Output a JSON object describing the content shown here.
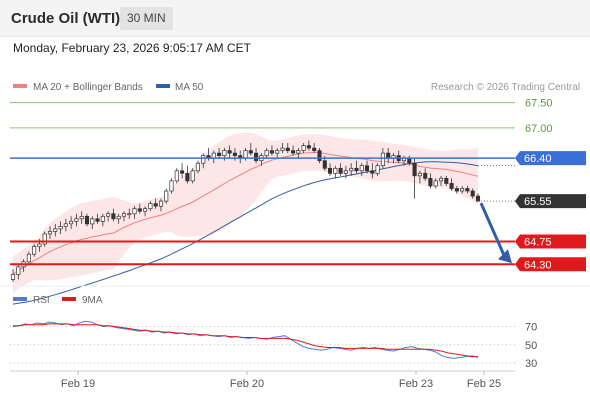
{
  "header": {
    "instrument": "Crude Oil (WTI)",
    "timeframe": "30 MIN"
  },
  "datetime": "Monday, February 23, 2026 9:05:17 AM CET",
  "legend": {
    "ma20_label": "MA 20 + Bollinger Bands",
    "ma50_label": "MA 50",
    "credit": "Research © 2026 Trading Central"
  },
  "rsi_legend": {
    "rsi_label": "RSI",
    "ma9_label": "9MA"
  },
  "colors": {
    "candle": "#333333",
    "ma20": "#f08080",
    "ma50": "#2f5fa8",
    "bollinger_fill": "#fde2e2",
    "resistance": "#8cc26a",
    "pivot": "#3a6fd8",
    "support": "#e0191d",
    "price_tag": "#333333",
    "rsi": "#5577dd",
    "rsi_ma": "#e0191d",
    "forecast_arrow": "#2f5fa8"
  },
  "chart_data": [
    {
      "type": "candlestick",
      "x_ticks": [
        "Feb 19",
        "Feb 20",
        "Feb 23",
        "Feb 25"
      ],
      "ylim": [
        63.85,
        67.65
      ],
      "levels": [
        {
          "value": 67.5,
          "label": "67.50",
          "kind": "resistance"
        },
        {
          "value": 67.0,
          "label": "67.00",
          "kind": "resistance"
        },
        {
          "value": 66.4,
          "label": "66.40",
          "kind": "pivot"
        },
        {
          "value": 64.75,
          "label": "64.75",
          "kind": "support"
        },
        {
          "value": 64.3,
          "label": "64.30",
          "kind": "support"
        }
      ],
      "last_price": {
        "value": 65.55,
        "label": "65.55"
      },
      "forecast": {
        "from": 65.55,
        "to": 64.3
      },
      "candles_ohlc": [
        [
          64.0,
          64.2,
          63.95,
          64.1
        ],
        [
          64.1,
          64.3,
          64.0,
          64.25
        ],
        [
          64.25,
          64.4,
          64.15,
          64.35
        ],
        [
          64.35,
          64.55,
          64.3,
          64.5
        ],
        [
          64.5,
          64.7,
          64.45,
          64.65
        ],
        [
          64.65,
          64.8,
          64.55,
          64.7
        ],
        [
          64.7,
          64.95,
          64.65,
          64.9
        ],
        [
          64.9,
          65.05,
          64.8,
          64.95
        ],
        [
          64.95,
          65.1,
          64.85,
          65.0
        ],
        [
          65.0,
          65.15,
          64.9,
          65.05
        ],
        [
          65.05,
          65.2,
          64.95,
          65.1
        ],
        [
          65.1,
          65.25,
          65.0,
          65.15
        ],
        [
          65.15,
          65.3,
          65.05,
          65.2
        ],
        [
          65.2,
          65.35,
          65.1,
          65.25
        ],
        [
          65.25,
          65.3,
          65.05,
          65.1
        ],
        [
          65.1,
          65.25,
          65.0,
          65.2
        ],
        [
          65.2,
          65.3,
          65.1,
          65.15
        ],
        [
          65.15,
          65.3,
          65.05,
          65.25
        ],
        [
          65.25,
          65.35,
          65.15,
          65.3
        ],
        [
          65.3,
          65.4,
          65.15,
          65.2
        ],
        [
          65.2,
          65.3,
          65.1,
          65.25
        ],
        [
          65.25,
          65.35,
          65.15,
          65.3
        ],
        [
          65.3,
          65.4,
          65.2,
          65.3
        ],
        [
          65.3,
          65.45,
          65.2,
          65.4
        ],
        [
          65.4,
          65.5,
          65.3,
          65.35
        ],
        [
          65.35,
          65.45,
          65.25,
          65.4
        ],
        [
          65.4,
          65.55,
          65.35,
          65.5
        ],
        [
          65.5,
          65.6,
          65.4,
          65.45
        ],
        [
          65.45,
          65.6,
          65.35,
          65.55
        ],
        [
          65.55,
          65.8,
          65.5,
          65.75
        ],
        [
          65.75,
          66.0,
          65.7,
          65.95
        ],
        [
          65.95,
          66.2,
          65.9,
          66.15
        ],
        [
          66.15,
          66.3,
          66.0,
          66.1
        ],
        [
          66.1,
          66.25,
          65.9,
          65.95
        ],
        [
          65.95,
          66.2,
          65.9,
          66.15
        ],
        [
          66.15,
          66.35,
          66.1,
          66.3
        ],
        [
          66.3,
          66.5,
          66.2,
          66.45
        ],
        [
          66.45,
          66.6,
          66.35,
          66.4
        ],
        [
          66.4,
          66.55,
          66.3,
          66.5
        ],
        [
          66.5,
          66.6,
          66.4,
          66.45
        ],
        [
          66.45,
          66.6,
          66.35,
          66.55
        ],
        [
          66.55,
          66.65,
          66.4,
          66.5
        ],
        [
          66.5,
          66.6,
          66.35,
          66.45
        ],
        [
          66.45,
          66.55,
          66.3,
          66.4
        ],
        [
          66.4,
          66.6,
          66.35,
          66.55
        ],
        [
          66.55,
          66.7,
          66.45,
          66.5
        ],
        [
          66.5,
          66.6,
          66.3,
          66.35
        ],
        [
          66.35,
          66.5,
          66.25,
          66.45
        ],
        [
          66.45,
          66.6,
          66.4,
          66.55
        ],
        [
          66.55,
          66.65,
          66.45,
          66.5
        ],
        [
          66.5,
          66.6,
          66.4,
          66.55
        ],
        [
          66.55,
          66.7,
          66.5,
          66.6
        ],
        [
          66.6,
          66.7,
          66.5,
          66.55
        ],
        [
          66.55,
          66.65,
          66.45,
          66.5
        ],
        [
          66.5,
          66.6,
          66.4,
          66.55
        ],
        [
          66.55,
          66.7,
          66.5,
          66.65
        ],
        [
          66.65,
          66.75,
          66.55,
          66.6
        ],
        [
          66.6,
          66.7,
          66.5,
          66.55
        ],
        [
          66.55,
          66.6,
          66.3,
          66.35
        ],
        [
          66.35,
          66.45,
          66.15,
          66.2
        ],
        [
          66.2,
          66.3,
          66.05,
          66.1
        ],
        [
          66.1,
          66.25,
          66.0,
          66.2
        ],
        [
          66.2,
          66.3,
          66.05,
          66.1
        ],
        [
          66.1,
          66.25,
          66.0,
          66.15
        ],
        [
          66.15,
          66.3,
          66.05,
          66.2
        ],
        [
          66.2,
          66.35,
          66.1,
          66.15
        ],
        [
          66.15,
          66.3,
          66.05,
          66.25
        ],
        [
          66.25,
          66.35,
          66.1,
          66.15
        ],
        [
          66.15,
          66.3,
          66.0,
          66.1
        ],
        [
          66.1,
          66.3,
          66.05,
          66.25
        ],
        [
          66.25,
          66.6,
          66.2,
          66.5
        ],
        [
          66.5,
          66.6,
          66.3,
          66.4
        ],
        [
          66.4,
          66.5,
          66.3,
          66.45
        ],
        [
          66.45,
          66.55,
          66.3,
          66.35
        ],
        [
          66.35,
          66.45,
          66.25,
          66.4
        ],
        [
          66.4,
          66.45,
          66.25,
          66.3
        ],
        [
          66.3,
          66.4,
          65.6,
          66.05
        ],
        [
          66.05,
          66.15,
          65.9,
          66.1
        ],
        [
          66.1,
          66.2,
          65.95,
          66.0
        ],
        [
          66.0,
          66.1,
          65.8,
          65.85
        ],
        [
          65.85,
          66.0,
          65.8,
          65.95
        ],
        [
          65.95,
          66.05,
          65.85,
          66.0
        ],
        [
          66.0,
          66.05,
          65.85,
          65.9
        ],
        [
          65.9,
          66.0,
          65.75,
          65.8
        ],
        [
          65.8,
          65.85,
          65.7,
          65.75
        ],
        [
          65.75,
          65.85,
          65.7,
          65.8
        ],
        [
          65.8,
          65.85,
          65.7,
          65.75
        ],
        [
          65.75,
          65.8,
          65.6,
          65.65
        ],
        [
          65.65,
          65.7,
          65.55,
          65.55
        ]
      ]
    },
    {
      "type": "line",
      "title": "RSI",
      "y_ticks": [
        70,
        50,
        30
      ],
      "ylim": [
        20,
        85
      ],
      "series": [
        {
          "name": "RSI",
          "values": [
            70,
            71,
            73,
            72,
            74,
            73,
            75,
            74,
            72,
            73,
            71,
            74,
            76,
            75,
            72,
            70,
            71,
            69,
            68,
            67,
            66,
            65,
            66,
            64,
            65,
            63,
            64,
            62,
            63,
            61,
            62,
            60,
            61,
            60,
            59,
            60,
            58,
            59,
            58,
            57,
            58,
            57,
            56,
            58,
            59,
            60,
            56,
            52,
            48,
            46,
            45,
            44,
            45,
            47,
            46,
            45,
            44,
            46,
            47,
            46,
            47,
            45,
            44,
            43,
            45,
            47,
            48,
            46,
            45,
            44,
            42,
            38,
            36,
            35,
            36,
            37,
            38,
            36
          ]
        },
        {
          "name": "9MA",
          "values": [
            71,
            71,
            72,
            72,
            72,
            72,
            73,
            73,
            73,
            73,
            72,
            72,
            72,
            72,
            72,
            71,
            71,
            70,
            69,
            68,
            67,
            66,
            66,
            65,
            65,
            64,
            64,
            63,
            63,
            62,
            62,
            61,
            61,
            60,
            60,
            60,
            59,
            59,
            58,
            58,
            58,
            57,
            57,
            57,
            57,
            57,
            56,
            55,
            53,
            51,
            49,
            48,
            47,
            47,
            47,
            46,
            46,
            46,
            46,
            46,
            46,
            46,
            45,
            45,
            45,
            45,
            45,
            45,
            45,
            45,
            44,
            43,
            41,
            40,
            39,
            38,
            37,
            37
          ]
        }
      ]
    }
  ]
}
